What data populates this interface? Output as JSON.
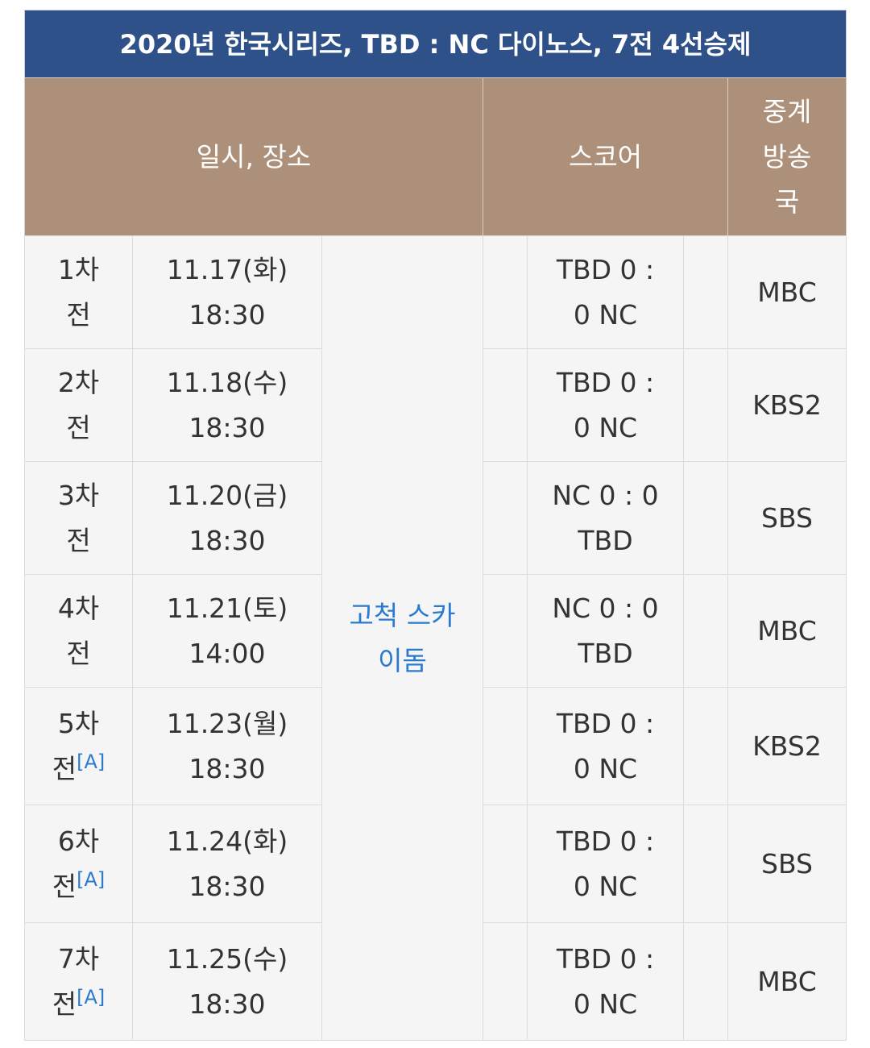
{
  "title": "2020년 한국시리즈, TBD : NC 다이노스, 7전 4선승제",
  "headers": {
    "datetime_venue": "일시, 장소",
    "score": "스코어",
    "broadcaster": "중계방송국"
  },
  "venue": "고척 스카이돔",
  "colors": {
    "title_bg": "#2f5189",
    "header_bg": "#ad907a",
    "link": "#2a7ad2"
  },
  "games": [
    {
      "game": "1차전",
      "ref": "",
      "date": "11.17(화)",
      "time": "18:30",
      "score": "TBD 0 : 0 NC",
      "broadcaster": "MBC"
    },
    {
      "game": "2차전",
      "ref": "",
      "date": "11.18(수)",
      "time": "18:30",
      "score": "TBD 0 : 0 NC",
      "broadcaster": "KBS2"
    },
    {
      "game": "3차전",
      "ref": "",
      "date": "11.20(금)",
      "time": "18:30",
      "score": "NC 0 : 0 TBD",
      "broadcaster": "SBS"
    },
    {
      "game": "4차전",
      "ref": "",
      "date": "11.21(토)",
      "time": "14:00",
      "score": "NC 0 : 0 TBD",
      "broadcaster": "MBC"
    },
    {
      "game": "5차전",
      "ref": "[A]",
      "date": "11.23(월)",
      "time": "18:30",
      "score": "TBD 0 : 0 NC",
      "broadcaster": "KBS2"
    },
    {
      "game": "6차전",
      "ref": "[A]",
      "date": "11.24(화)",
      "time": "18:30",
      "score": "TBD 0 : 0 NC",
      "broadcaster": "SBS"
    },
    {
      "game": "7차전",
      "ref": "[A]",
      "date": "11.25(수)",
      "time": "18:30",
      "score": "TBD 0 : 0 NC",
      "broadcaster": "MBC"
    }
  ]
}
